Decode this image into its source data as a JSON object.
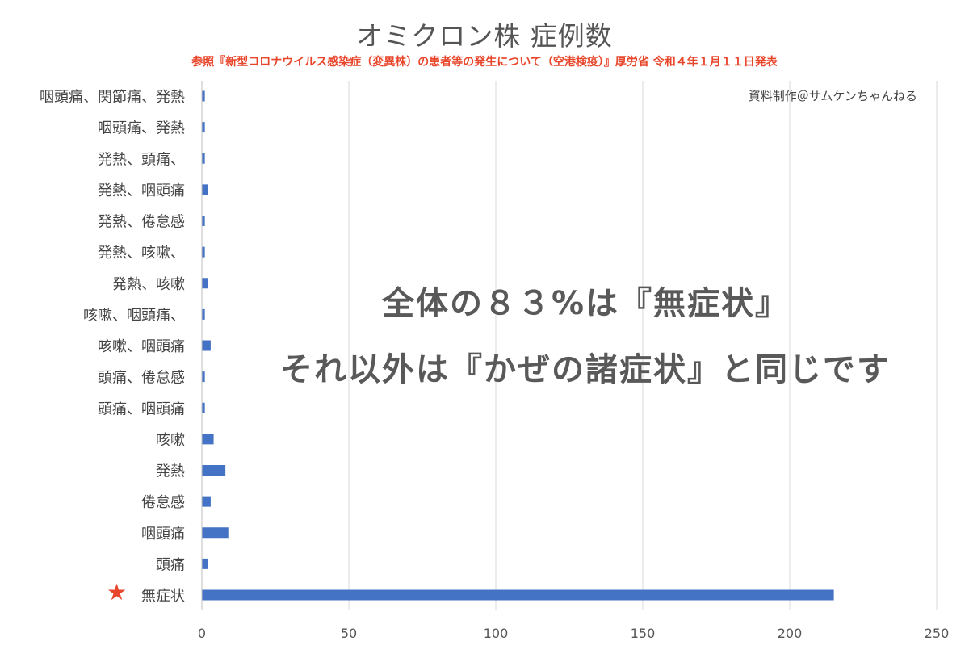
{
  "colors": {
    "bar": "#4472c4",
    "grid": "#d9d9d9",
    "subtitle": "#e8462b",
    "star": "#e8462b"
  },
  "chart_data": {
    "type": "bar",
    "orientation": "horizontal",
    "title": "オミクロン株 症例数",
    "subtitle": "参照『新型コロナウイルス感染症（変異株）の患者等の発生について（空港検疫）』厚労省 令和４年１月１１日発表",
    "categories": [
      "咽頭痛、関節痛、発熱",
      "咽頭痛、発熱",
      "発熱、頭痛、",
      "発熱、咽頭痛",
      "発熱、倦怠感",
      "発熱、咳嗽、",
      "発熱、咳嗽",
      "咳嗽、咽頭痛、",
      "咳嗽、咽頭痛",
      "頭痛、倦怠感",
      "頭痛、咽頭痛",
      "咳嗽",
      "発熱",
      "倦怠感",
      "咽頭痛",
      "頭痛",
      "無症状"
    ],
    "values": [
      1,
      1,
      1,
      2,
      1,
      1,
      2,
      1,
      3,
      1,
      1,
      4,
      8,
      3,
      9,
      2,
      215
    ],
    "xlim": [
      0,
      250
    ],
    "xticks": [
      0,
      50,
      100,
      150,
      200,
      250
    ],
    "grid": "vertical",
    "highlight_marker": "★",
    "annotations": [
      "全体の８３%は『無症状』",
      "それ以外は『かぜの諸症状』と同じです"
    ],
    "credit": "資料制作＠サムケンちゃんねる"
  }
}
